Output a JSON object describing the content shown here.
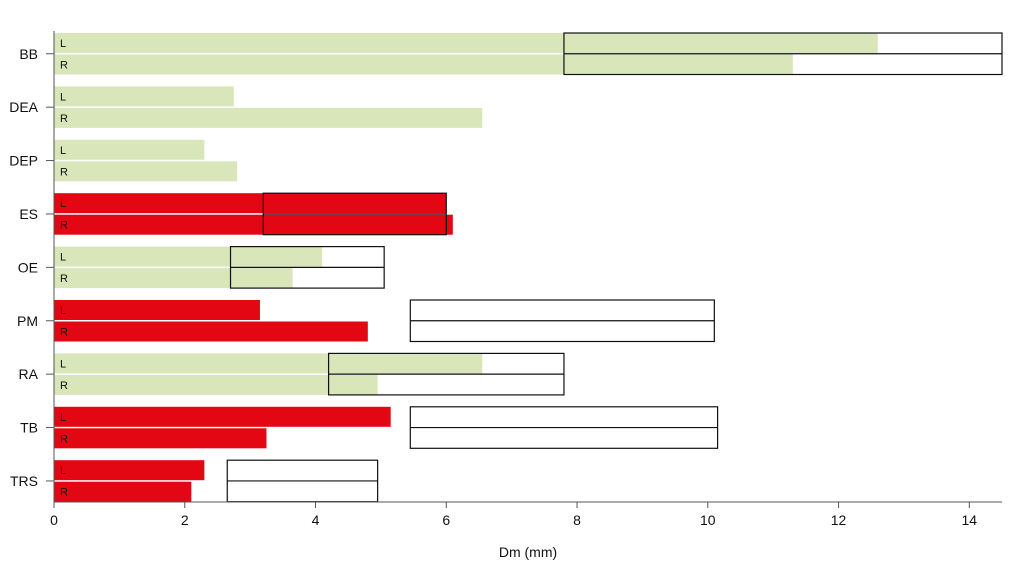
{
  "chart_data": {
    "type": "bar",
    "orientation": "horizontal",
    "title": "",
    "xlabel": "Dm (mm)",
    "ylabel": "",
    "xlim": [
      0,
      14.5
    ],
    "xticks": [
      0,
      2,
      4,
      6,
      8,
      10,
      12,
      14
    ],
    "grid": false,
    "legend": "none",
    "colors": {
      "normal": "#d9e6b9",
      "abnormal": "#e30613",
      "range_outline": "#111111"
    },
    "side_labels": [
      "L",
      "R"
    ],
    "categories": [
      {
        "name": "BB",
        "status": "normal",
        "L": 12.6,
        "R": 11.3,
        "range": [
          7.8,
          14.5
        ]
      },
      {
        "name": "DEA",
        "status": "normal",
        "L": 2.75,
        "R": 6.55,
        "range": null
      },
      {
        "name": "DEP",
        "status": "normal",
        "L": 2.3,
        "R": 2.8,
        "range": null
      },
      {
        "name": "ES",
        "status": "abnormal",
        "L": 6.0,
        "R": 6.1,
        "range": [
          3.2,
          6.0
        ]
      },
      {
        "name": "OE",
        "status": "normal",
        "L": 4.1,
        "R": 3.65,
        "range": [
          2.7,
          5.05
        ]
      },
      {
        "name": "PM",
        "status": "abnormal",
        "L": 3.15,
        "R": 4.8,
        "range": [
          5.45,
          10.1
        ]
      },
      {
        "name": "RA",
        "status": "normal",
        "L": 6.55,
        "R": 4.95,
        "range": [
          4.2,
          7.8
        ]
      },
      {
        "name": "TB",
        "status": "abnormal",
        "L": 5.15,
        "R": 3.25,
        "range": [
          5.45,
          10.15
        ]
      },
      {
        "name": "TRS",
        "status": "abnormal",
        "L": 2.3,
        "R": 2.1,
        "range": [
          2.65,
          4.95
        ]
      }
    ]
  }
}
